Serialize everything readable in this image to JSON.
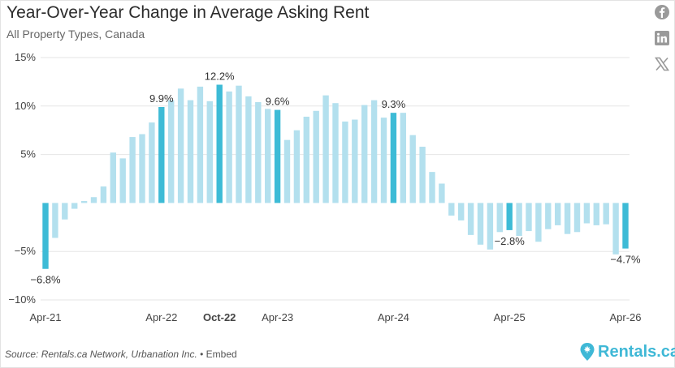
{
  "title": "Year-Over-Year Change in Average Asking Rent",
  "subtitle": "All Property Types, Canada",
  "footer": {
    "source": "Source: Rentals.ca Network, Urbanation Inc.",
    "separator": "•",
    "embed": "Embed"
  },
  "brand": {
    "name": "Rentals.ca"
  },
  "social": [
    "facebook-icon",
    "linkedin-icon",
    "x-icon"
  ],
  "colors": {
    "bar_light": "#b3e0ee",
    "bar_highlight": "#3dbbd6",
    "grid": "#e6e6e6",
    "text": "#333333",
    "brand": "#3fb8d6"
  },
  "chart_data": {
    "type": "bar",
    "title": "Year-Over-Year Change in Average Asking Rent",
    "subtitle": "All Property Types, Canada",
    "ylim": [
      -10,
      15
    ],
    "yticks": [
      -10,
      -5,
      5,
      10,
      15
    ],
    "ytick_labels": [
      "−10%",
      "−5%",
      "5%",
      "10%",
      "15%"
    ],
    "grid": true,
    "x_tick_labels": [
      {
        "index": 0,
        "label": "Apr-21",
        "bold": false
      },
      {
        "index": 12,
        "label": "Apr-22",
        "bold": false
      },
      {
        "index": 18,
        "label": "Oct-22",
        "bold": true
      },
      {
        "index": 24,
        "label": "Apr-23",
        "bold": false
      },
      {
        "index": 36,
        "label": "Apr-24",
        "bold": false
      },
      {
        "index": 48,
        "label": "Apr-25",
        "bold": false
      },
      {
        "index": 60,
        "label": "Apr-26",
        "bold": false
      }
    ],
    "categories": [
      "Apr-21",
      "May-21",
      "Jun-21",
      "Jul-21",
      "Aug-21",
      "Sep-21",
      "Oct-21",
      "Nov-21",
      "Dec-21",
      "Jan-22",
      "Feb-22",
      "Mar-22",
      "Apr-22",
      "May-22",
      "Jun-22",
      "Jul-22",
      "Aug-22",
      "Sep-22",
      "Oct-22",
      "Nov-22",
      "Dec-22",
      "Jan-23",
      "Feb-23",
      "Mar-23",
      "Apr-23",
      "May-23",
      "Jun-23",
      "Jul-23",
      "Aug-23",
      "Sep-23",
      "Oct-23",
      "Nov-23",
      "Dec-23",
      "Jan-24",
      "Feb-24",
      "Mar-24",
      "Apr-24",
      "May-24",
      "Jun-24",
      "Jul-24",
      "Aug-24",
      "Sep-24",
      "Oct-24",
      "Nov-24",
      "Dec-24",
      "Jan-25",
      "Feb-25",
      "Mar-25",
      "Apr-25",
      "May-25",
      "Jun-25",
      "Jul-25",
      "Aug-25",
      "Sep-25",
      "Oct-25",
      "Nov-25",
      "Dec-25",
      "Jan-26",
      "Feb-26",
      "Mar-26",
      "Apr-26"
    ],
    "values": [
      -6.8,
      -3.6,
      -1.7,
      -0.6,
      0.2,
      0.6,
      1.7,
      5.2,
      4.6,
      6.8,
      7.1,
      8.3,
      9.9,
      10.6,
      11.8,
      10.6,
      12.0,
      10.5,
      12.2,
      11.5,
      12.1,
      11.0,
      10.4,
      9.7,
      9.6,
      6.5,
      7.5,
      8.9,
      9.5,
      11.1,
      10.3,
      8.4,
      8.6,
      10.1,
      10.6,
      8.8,
      9.3,
      9.3,
      7.0,
      5.8,
      3.2,
      2.0,
      -1.3,
      -1.8,
      -3.3,
      -4.3,
      -4.8,
      -3.0,
      -2.8,
      -3.4,
      -2.9,
      -4.0,
      -2.7,
      -2.3,
      -3.2,
      -3.0,
      -2.1,
      -2.3,
      -2.2,
      -5.3,
      -4.7
    ],
    "highlighted_indices": [
      0,
      12,
      18,
      24,
      36,
      48,
      60
    ],
    "data_labels": [
      {
        "index": 0,
        "text": "−6.8%"
      },
      {
        "index": 12,
        "text": "9.9%"
      },
      {
        "index": 18,
        "text": "12.2%"
      },
      {
        "index": 24,
        "text": "9.6%"
      },
      {
        "index": 36,
        "text": "9.3%"
      },
      {
        "index": 48,
        "text": "−2.8%"
      },
      {
        "index": 60,
        "text": "−4.7%"
      }
    ]
  }
}
